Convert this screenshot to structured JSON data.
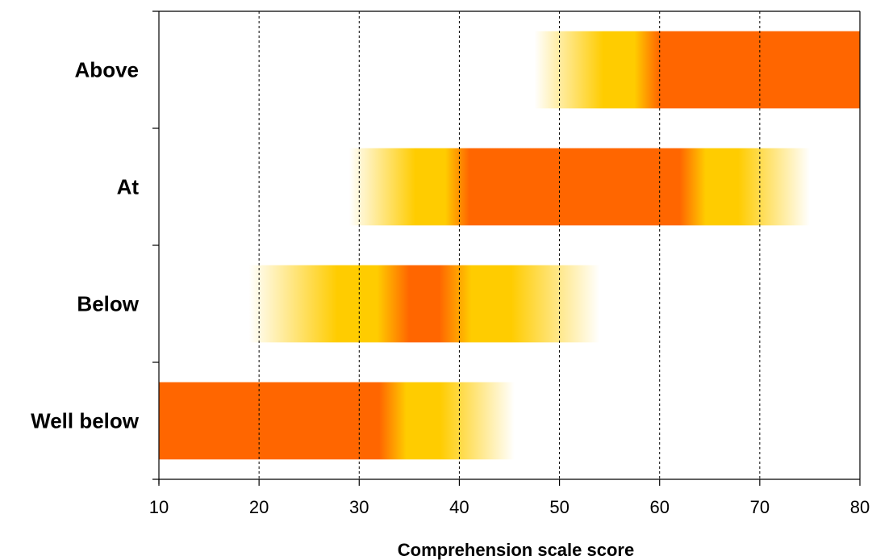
{
  "chart_data": {
    "type": "bar",
    "orientation": "horizontal",
    "xlabel": "Comprehension scale score",
    "ylabel": "",
    "xlim": [
      10,
      80
    ],
    "xticks": [
      10,
      20,
      30,
      40,
      50,
      60,
      70,
      80
    ],
    "grid": "vertical dashed",
    "categories": [
      "Above",
      "At",
      "Below",
      "Well below"
    ],
    "series": [
      {
        "values": [
          {
            "start": 47.5,
            "peak_start": 60,
            "peak_end": 80,
            "end": 80
          },
          {
            "start": 29,
            "peak_start": 41,
            "peak_end": 62,
            "end": 75
          },
          {
            "start": 19,
            "peak_start": 35,
            "peak_end": 38,
            "end": 54
          },
          {
            "start": 10,
            "peak_start": 10,
            "peak_end": 32,
            "end": 45.5
          }
        ]
      }
    ],
    "colors": {
      "peak": "#FF6600",
      "mid": "#FFCC00",
      "fade": "#FFFFFF"
    }
  }
}
